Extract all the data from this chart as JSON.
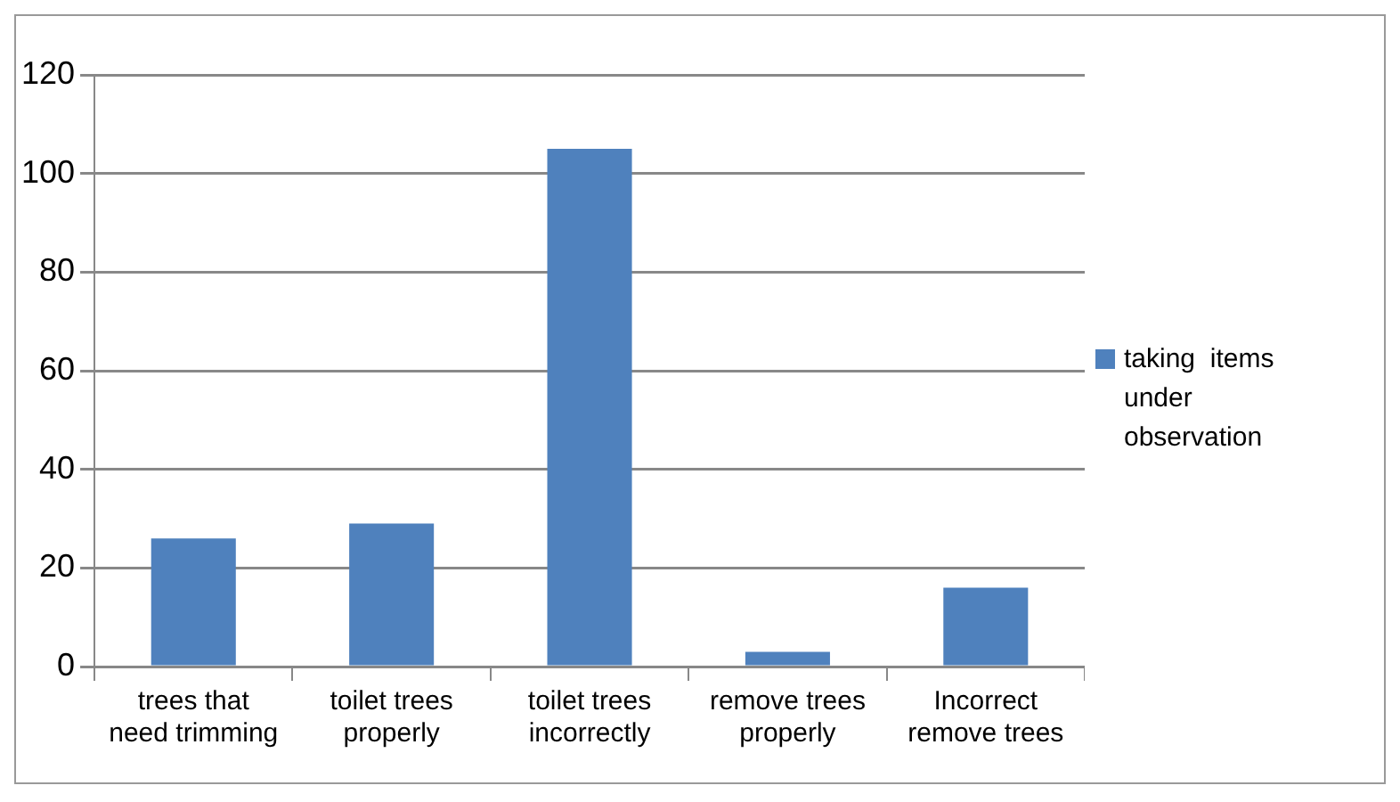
{
  "chart_data": {
    "type": "bar",
    "categories": [
      "trees that need trimming",
      "toilet trees properly",
      "toilet trees incorrectly",
      "remove trees properly",
      "Incorrect remove trees"
    ],
    "series": [
      {
        "name": "taking  items under observation",
        "color": "#4f81bd",
        "values": [
          26,
          29,
          105,
          3,
          16
        ]
      }
    ],
    "ylim": [
      0,
      120
    ],
    "yticks": [
      0,
      20,
      40,
      60,
      80,
      100,
      120
    ],
    "grid": "y",
    "legend": "right"
  }
}
